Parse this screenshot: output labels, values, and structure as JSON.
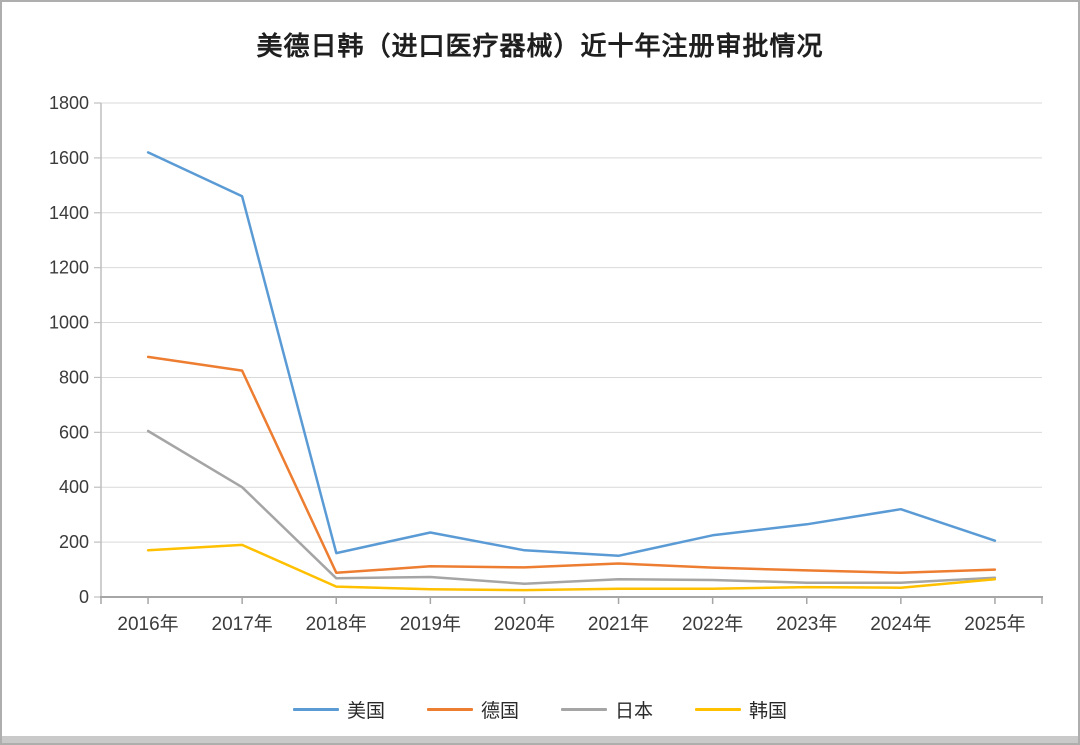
{
  "chart_data": {
    "type": "line",
    "title": "美德日韩（进口医疗器械）近十年注册审批情况",
    "xlabel": "",
    "ylabel": "",
    "categories": [
      "2016年",
      "2017年",
      "2018年",
      "2019年",
      "2020年",
      "2021年",
      "2022年",
      "2023年",
      "2024年",
      "2025年"
    ],
    "series": [
      {
        "name": "美国",
        "color": "#5B9BD5",
        "values": [
          1620,
          1460,
          160,
          235,
          170,
          150,
          225,
          265,
          320,
          205
        ]
      },
      {
        "name": "德国",
        "color": "#ED7D31",
        "values": [
          875,
          825,
          88,
          112,
          108,
          122,
          107,
          97,
          88,
          100
        ]
      },
      {
        "name": "日本",
        "color": "#A5A5A5",
        "values": [
          605,
          400,
          68,
          73,
          48,
          65,
          62,
          52,
          52,
          70
        ]
      },
      {
        "name": "韩国",
        "color": "#FFC000",
        "values": [
          170,
          190,
          38,
          28,
          25,
          30,
          30,
          36,
          34,
          65
        ]
      }
    ],
    "ylim": [
      0,
      1800
    ],
    "ytick_step": 200,
    "y_ticks": [
      0,
      200,
      400,
      600,
      800,
      1000,
      1200,
      1400,
      1600,
      1800
    ],
    "grid": true,
    "legend_position": "bottom",
    "style": {
      "gridline_color": "#D9D9D9",
      "y_axis_color": "#BFBFBF",
      "x_axis_color": "#A6A6A6",
      "label_color": "#3B3B3B",
      "background": "#FFFFFF",
      "border_color": "#AEAEAE",
      "bottom_bar_color": "#C9C9C9"
    }
  }
}
